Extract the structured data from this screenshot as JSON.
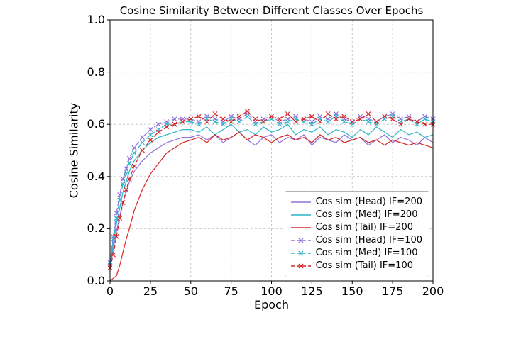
{
  "chart_data": {
    "type": "line",
    "title": "Cosine Similarity Between Different Classes Over Epochs",
    "xlabel": "Epoch",
    "ylabel": "Cosine Similarity",
    "xlim": [
      0,
      200
    ],
    "ylim": [
      0.0,
      1.0
    ],
    "xticks": [
      0,
      25,
      50,
      75,
      100,
      125,
      150,
      175,
      200
    ],
    "yticks": [
      0.0,
      0.2,
      0.4,
      0.6,
      0.8,
      1.0
    ],
    "grid": true,
    "grid_color": "#c9c9c9",
    "legend_position": "lower right",
    "x": [
      0,
      2,
      4,
      6,
      8,
      10,
      12,
      15,
      20,
      25,
      30,
      35,
      40,
      45,
      50,
      55,
      60,
      65,
      70,
      75,
      80,
      85,
      90,
      95,
      100,
      105,
      110,
      115,
      120,
      125,
      130,
      135,
      140,
      145,
      150,
      155,
      160,
      165,
      170,
      175,
      180,
      185,
      190,
      195,
      200
    ],
    "series": [
      {
        "name": "Cos sim (Head) IF=200",
        "color": "#9370db",
        "style": "solid",
        "marker": "none",
        "values": [
          0.05,
          0.12,
          0.19,
          0.25,
          0.3,
          0.34,
          0.38,
          0.42,
          0.46,
          0.49,
          0.51,
          0.53,
          0.54,
          0.55,
          0.55,
          0.56,
          0.54,
          0.56,
          0.53,
          0.55,
          0.57,
          0.54,
          0.52,
          0.55,
          0.56,
          0.53,
          0.55,
          0.54,
          0.56,
          0.52,
          0.55,
          0.54,
          0.53,
          0.56,
          0.54,
          0.55,
          0.52,
          0.54,
          0.56,
          0.53,
          0.55,
          0.54,
          0.52,
          0.55,
          0.53
        ]
      },
      {
        "name": "Cos sim (Med) IF=200",
        "color": "#2ab5c9",
        "style": "solid",
        "marker": "none",
        "values": [
          0.06,
          0.14,
          0.22,
          0.28,
          0.34,
          0.38,
          0.42,
          0.46,
          0.5,
          0.53,
          0.55,
          0.56,
          0.57,
          0.58,
          0.58,
          0.57,
          0.59,
          0.56,
          0.58,
          0.6,
          0.57,
          0.58,
          0.56,
          0.59,
          0.57,
          0.58,
          0.6,
          0.56,
          0.58,
          0.57,
          0.59,
          0.56,
          0.58,
          0.57,
          0.55,
          0.58,
          0.56,
          0.59,
          0.57,
          0.55,
          0.58,
          0.56,
          0.57,
          0.55,
          0.56
        ]
      },
      {
        "name": "Cos sim (Tail) IF=200",
        "color": "#d62728",
        "style": "solid",
        "marker": "none",
        "values": [
          0.0,
          0.01,
          0.02,
          0.06,
          0.11,
          0.16,
          0.2,
          0.27,
          0.35,
          0.41,
          0.45,
          0.49,
          0.51,
          0.53,
          0.54,
          0.55,
          0.53,
          0.56,
          0.54,
          0.55,
          0.57,
          0.54,
          0.56,
          0.55,
          0.53,
          0.55,
          0.56,
          0.54,
          0.55,
          0.53,
          0.56,
          0.54,
          0.55,
          0.53,
          0.54,
          0.55,
          0.53,
          0.54,
          0.52,
          0.54,
          0.53,
          0.52,
          0.53,
          0.52,
          0.51
        ]
      },
      {
        "name": "Cos sim (Head) IF=100",
        "color": "#9370db",
        "style": "dashed",
        "marker": "x",
        "values": [
          0.07,
          0.17,
          0.26,
          0.33,
          0.39,
          0.43,
          0.47,
          0.51,
          0.55,
          0.58,
          0.6,
          0.61,
          0.62,
          0.62,
          0.62,
          0.61,
          0.63,
          0.62,
          0.61,
          0.63,
          0.62,
          0.64,
          0.61,
          0.62,
          0.63,
          0.61,
          0.62,
          0.63,
          0.62,
          0.61,
          0.63,
          0.62,
          0.64,
          0.62,
          0.61,
          0.63,
          0.62,
          0.61,
          0.63,
          0.64,
          0.62,
          0.63,
          0.61,
          0.63,
          0.62
        ]
      },
      {
        "name": "Cos sim (Med) IF=100",
        "color": "#2ab5c9",
        "style": "dashed",
        "marker": "x",
        "values": [
          0.06,
          0.16,
          0.24,
          0.31,
          0.37,
          0.41,
          0.45,
          0.49,
          0.53,
          0.56,
          0.58,
          0.6,
          0.6,
          0.61,
          0.61,
          0.6,
          0.62,
          0.61,
          0.6,
          0.62,
          0.61,
          0.63,
          0.6,
          0.61,
          0.62,
          0.6,
          0.61,
          0.62,
          0.61,
          0.6,
          0.62,
          0.61,
          0.63,
          0.61,
          0.6,
          0.62,
          0.61,
          0.6,
          0.62,
          0.63,
          0.61,
          0.62,
          0.6,
          0.62,
          0.61
        ]
      },
      {
        "name": "Cos sim (Tail) IF=100",
        "color": "#d62728",
        "style": "dashed",
        "marker": "x",
        "values": [
          0.05,
          0.1,
          0.17,
          0.24,
          0.3,
          0.35,
          0.39,
          0.44,
          0.5,
          0.54,
          0.57,
          0.59,
          0.6,
          0.61,
          0.62,
          0.63,
          0.61,
          0.64,
          0.62,
          0.61,
          0.63,
          0.65,
          0.62,
          0.61,
          0.63,
          0.62,
          0.64,
          0.61,
          0.62,
          0.63,
          0.61,
          0.64,
          0.62,
          0.63,
          0.61,
          0.62,
          0.64,
          0.61,
          0.63,
          0.62,
          0.6,
          0.62,
          0.61,
          0.6,
          0.6
        ]
      }
    ]
  }
}
